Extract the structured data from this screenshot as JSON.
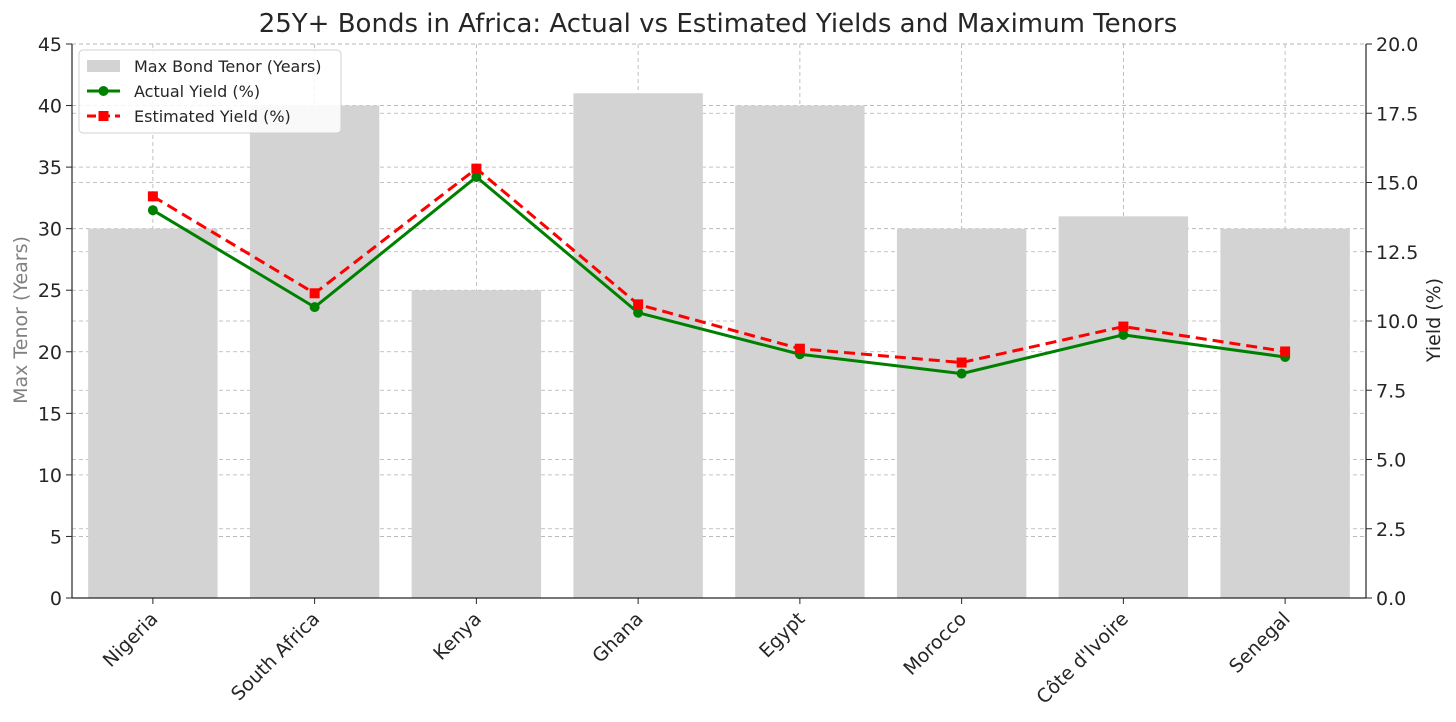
{
  "chart_data": {
    "type": "bar",
    "title": "25Y+ Bonds in Africa: Actual vs Estimated Yields and Maximum Tenors",
    "xlabel": "",
    "ylabel_left": "Max Tenor (Years)",
    "ylabel_right": "Yield (%)",
    "categories": [
      "Nigeria",
      "South Africa",
      "Kenya",
      "Ghana",
      "Egypt",
      "Morocco",
      "Côte d'Ivoire",
      "Senegal"
    ],
    "left_axis": {
      "min": 0,
      "max": 45,
      "ticks": [
        "0",
        "5",
        "10",
        "15",
        "20",
        "25",
        "30",
        "35",
        "40",
        "45"
      ]
    },
    "right_axis": {
      "min": 0,
      "max": 20,
      "ticks": [
        "0.0",
        "2.5",
        "5.0",
        "7.5",
        "10.0",
        "12.5",
        "15.0",
        "17.5",
        "20.0"
      ]
    },
    "grid": true,
    "legend_position": "top-left",
    "series": [
      {
        "name": "Max Bond Tenor (Years)",
        "type": "bar",
        "axis": "left",
        "color": "#d3d3d3",
        "values": [
          30,
          40,
          25,
          41,
          40,
          30,
          31,
          30
        ]
      },
      {
        "name": "Actual Yield (%)",
        "type": "line",
        "axis": "right",
        "color": "#008000",
        "marker": "circle",
        "dash": "solid",
        "values": [
          14.0,
          10.5,
          15.2,
          10.3,
          8.8,
          8.1,
          9.5,
          8.7
        ]
      },
      {
        "name": "Estimated Yield (%)",
        "type": "line",
        "axis": "right",
        "color": "#ff0000",
        "marker": "square",
        "dash": "dashed",
        "values": [
          14.5,
          11.0,
          15.5,
          10.6,
          9.0,
          8.5,
          9.8,
          8.9
        ]
      }
    ]
  }
}
